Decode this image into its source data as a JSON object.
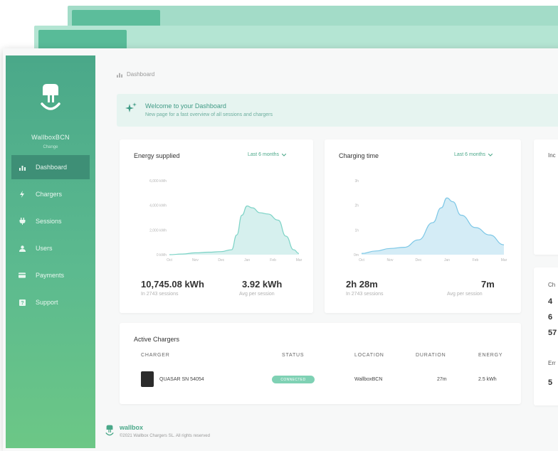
{
  "sidebar": {
    "brand_name": "WallboxBCN",
    "brand_sub": "Change",
    "items": [
      {
        "label": "Dashboard",
        "icon": "bar-chart-icon",
        "active": true
      },
      {
        "label": "Chargers",
        "icon": "bolt-icon",
        "active": false
      },
      {
        "label": "Sessions",
        "icon": "plug-icon",
        "active": false
      },
      {
        "label": "Users",
        "icon": "user-icon",
        "active": false
      },
      {
        "label": "Payments",
        "icon": "card-icon",
        "active": false
      },
      {
        "label": "Support",
        "icon": "help-icon",
        "active": false
      }
    ]
  },
  "breadcrumb": {
    "label": "Dashboard"
  },
  "welcome": {
    "title": "Welcome to your Dashboard",
    "subtitle": "New page for a fast overview of all sessions and chargers"
  },
  "energy": {
    "title": "Energy supplied",
    "period": "Last 6 months",
    "total_value": "10,745.08 kWh",
    "total_label": "In 2743 sessions",
    "avg_value": "3.92 kWh",
    "avg_label": "Avg per session",
    "chart_data": {
      "type": "area",
      "categories": [
        "Oct",
        "Nov",
        "Dec",
        "Jan",
        "Feb",
        "Mar"
      ],
      "y_ticks": [
        "0 kWh",
        "2,000 kWh",
        "4,000 kWh",
        "6,000 kWh"
      ],
      "ylim": [
        0,
        6000
      ],
      "x": [
        0,
        0.5,
        1,
        1.5,
        2,
        2.4,
        2.6,
        2.8,
        3.0,
        3.2,
        3.5,
        3.8,
        4.2,
        4.5,
        4.8,
        5
      ],
      "values": [
        0,
        50,
        150,
        200,
        250,
        400,
        1600,
        3200,
        3950,
        3800,
        3400,
        3300,
        2800,
        1500,
        400,
        100
      ]
    }
  },
  "time": {
    "title": "Charging time",
    "period": "Last 6 months",
    "total_value": "2h 28m",
    "total_label": "In 2743 sessions",
    "avg_value": "7m",
    "avg_label": "Avg per session",
    "chart_data": {
      "type": "area",
      "categories": [
        "Oct",
        "Nov",
        "Dec",
        "Jan",
        "Feb",
        "Mar"
      ],
      "y_ticks": [
        "0m",
        "1h",
        "2h",
        "3h"
      ],
      "ylim": [
        0,
        3
      ],
      "x": [
        0,
        0.5,
        1,
        1.5,
        2,
        2.5,
        2.8,
        3.0,
        3.2,
        3.5,
        4.0,
        4.5,
        5
      ],
      "values": [
        0.05,
        0.15,
        0.25,
        0.3,
        0.6,
        1.3,
        1.9,
        2.3,
        2.15,
        1.6,
        1.1,
        0.8,
        0.4
      ]
    }
  },
  "side_cards": {
    "third_title": "Inc",
    "fourth_title": "Ch",
    "fourth_rows": [
      "4",
      "6",
      "57"
    ],
    "fourth_err": "Err",
    "fourth_err_val": "5"
  },
  "active": {
    "title": "Active Chargers",
    "columns": [
      "CHARGER",
      "STATUS",
      "LOCATION",
      "DURATION",
      "ENERGY"
    ],
    "rows": [
      {
        "charger": "QUASAR SN 54054",
        "status": "CONNECTED",
        "location": "WallboxBCN",
        "duration": "27m",
        "energy": "2.5 kWh"
      }
    ]
  },
  "footer": {
    "brand": "wallbox",
    "copyright": "©2021 Wallbox Chargers SL. All rights reserved"
  },
  "colors": {
    "accent": "#4aa889",
    "chart_stroke": "#7cd3c6",
    "chart_fill": "#d6f0ee",
    "time_stroke": "#7cc7e6",
    "time_fill": "#d4ecf6"
  }
}
